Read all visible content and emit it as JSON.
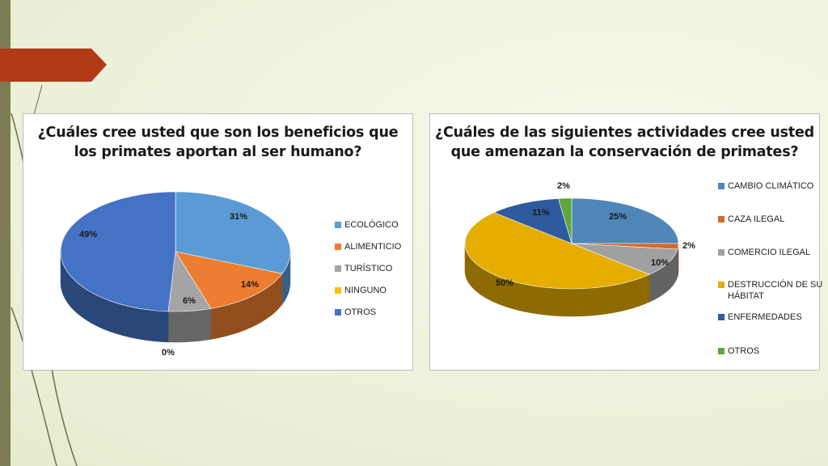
{
  "chart_data": [
    {
      "type": "pie",
      "title_lines": [
        "¿Cuáles cree usted que son los beneficios que",
        "los primates aportan al ser humano?"
      ],
      "categories": [
        "ECOLÓGICO",
        "ALIMENTICIO",
        "TURÍSTICO",
        "NINGUNO",
        "OTROS"
      ],
      "values": [
        31,
        14,
        6,
        0,
        49
      ],
      "labels": [
        "31%",
        "14%",
        "6%",
        "0%",
        "49%"
      ],
      "colors": [
        "#5b9bd5",
        "#ed7d31",
        "#a5a5a5",
        "#ffc000",
        "#4472c4"
      ],
      "legend_position": "right"
    },
    {
      "type": "pie",
      "title_lines": [
        "¿Cuáles de las siguientes actividades cree usted",
        "que amenazan la conservación de primates?"
      ],
      "categories": [
        "CAMBIO CLIMÁTICO",
        "CAZA ILEGAL",
        "COMERCIO ILEGAL",
        "DESTRUCCIÓN DE SU HÁBITAT",
        "ENFERMEDADES",
        "OTROS"
      ],
      "values": [
        25,
        2,
        10,
        50,
        11,
        2
      ],
      "labels": [
        "25%",
        "2%",
        "10%",
        "50%",
        "11%",
        "2%"
      ],
      "colors": [
        "#4e86b8",
        "#d4692b",
        "#a0a0a0",
        "#e5ad00",
        "#2e5a9e",
        "#5fa63c"
      ],
      "legend_position": "right"
    }
  ]
}
